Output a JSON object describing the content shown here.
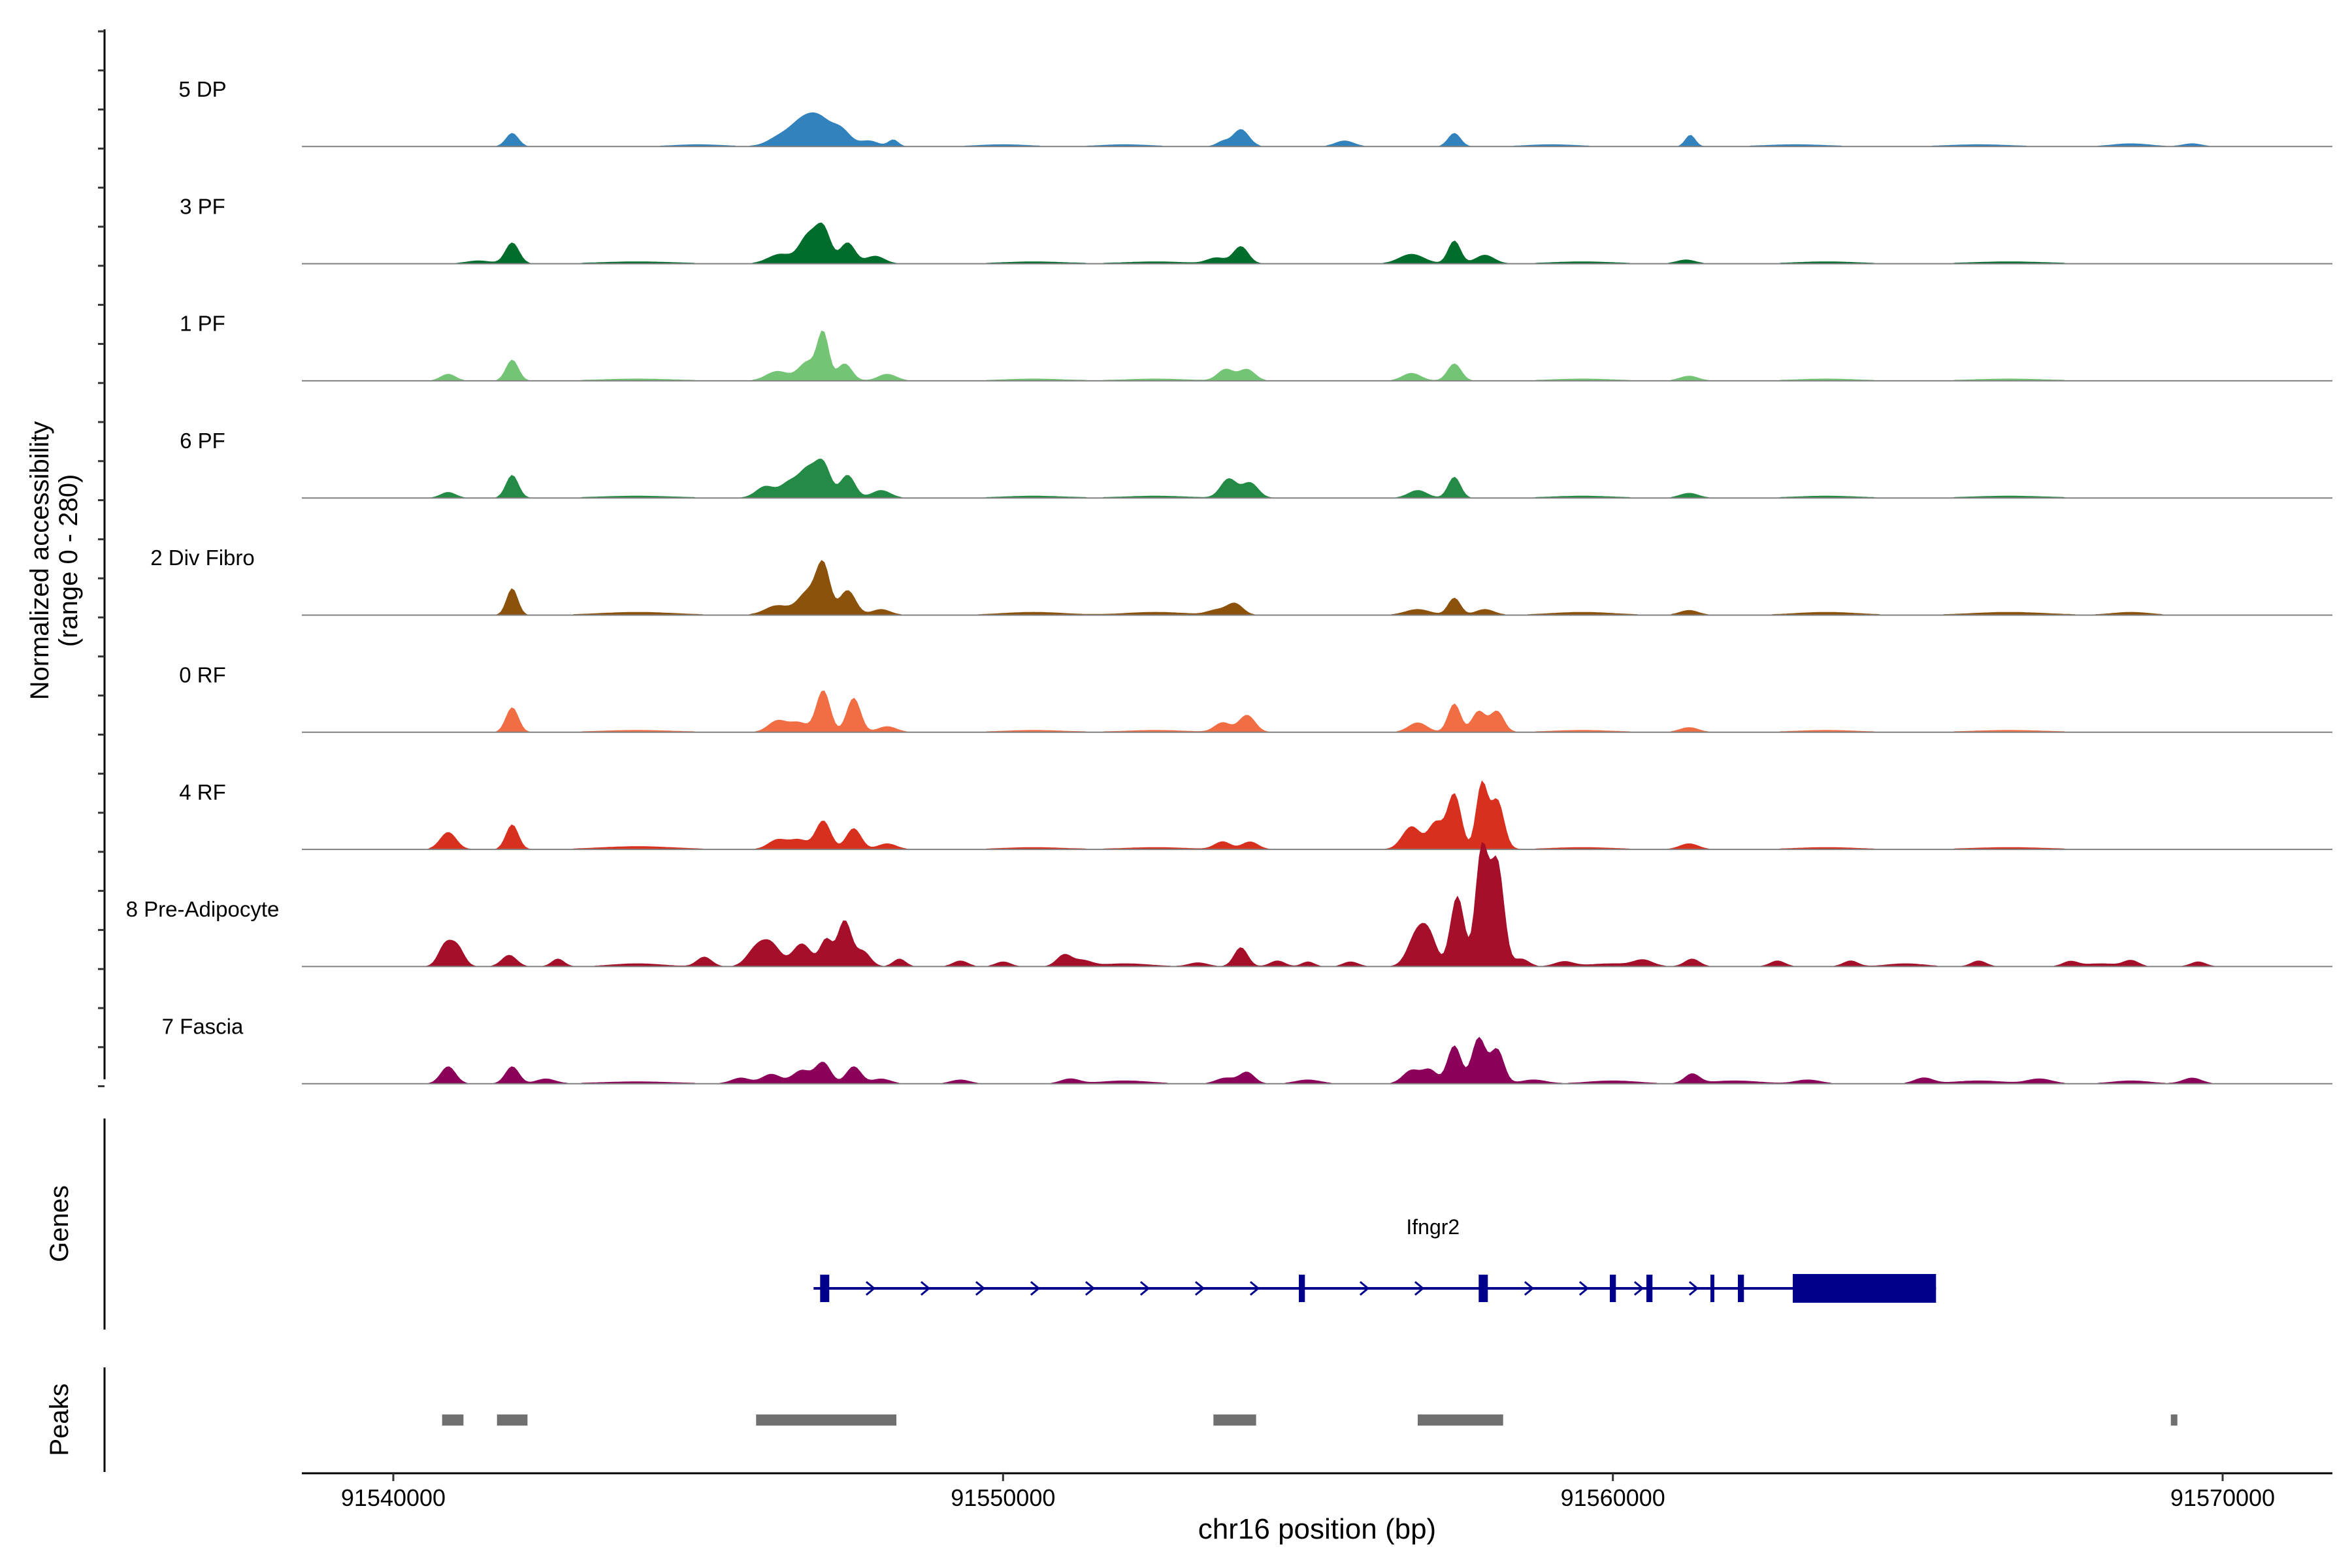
{
  "chart_data": {
    "type": "area",
    "title": "",
    "xlabel": "chr16 position (bp)",
    "ylabel": "Normalized accessibility",
    "ylabel_range": "(range 0 - 280)",
    "ylim": [
      0,
      280
    ],
    "xlim": [
      91538500,
      91571800
    ],
    "x_ticks": [
      91540000,
      91550000,
      91560000,
      91570000
    ],
    "x_tick_labels": [
      "91540000",
      "91550000",
      "91560000",
      "91570000"
    ],
    "gene_panel_label": "Genes",
    "peak_panel_label": "Peaks",
    "tracks": [
      {
        "name": "5 DP",
        "color": "#3182bd",
        "peaks": [
          [
            91541950,
            14,
            100
          ],
          [
            91546350,
            10,
            200
          ],
          [
            91546700,
            22,
            190
          ],
          [
            91547000,
            26,
            190
          ],
          [
            91547350,
            16,
            150
          ],
          [
            91547800,
            6,
            150
          ],
          [
            91548200,
            7,
            80
          ],
          [
            91553900,
            18,
            130
          ],
          [
            91553600,
            5,
            100
          ],
          [
            91555600,
            6,
            150
          ],
          [
            91557400,
            14,
            100
          ],
          [
            91561270,
            12,
            80
          ],
          [
            91545000,
            2,
            400
          ],
          [
            91550000,
            2,
            400
          ],
          [
            91552000,
            2,
            400
          ],
          [
            91559000,
            2,
            400
          ],
          [
            91563000,
            2,
            500
          ],
          [
            91566000,
            2,
            500
          ],
          [
            91568500,
            3,
            300
          ],
          [
            91569500,
            3,
            150
          ]
        ]
      },
      {
        "name": "3 PF",
        "color": "#006d2c",
        "peaks": [
          [
            91541950,
            22,
            110
          ],
          [
            91541400,
            3,
            200
          ],
          [
            91546350,
            10,
            200
          ],
          [
            91546800,
            28,
            140
          ],
          [
            91547050,
            36,
            120
          ],
          [
            91547450,
            22,
            120
          ],
          [
            91547900,
            8,
            150
          ],
          [
            91553900,
            18,
            120
          ],
          [
            91553500,
            6,
            150
          ],
          [
            91556700,
            10,
            200
          ],
          [
            91557400,
            24,
            100
          ],
          [
            91557900,
            9,
            150
          ],
          [
            91544000,
            2,
            600
          ],
          [
            91550500,
            2,
            500
          ],
          [
            91552500,
            2,
            500
          ],
          [
            91559500,
            2,
            500
          ],
          [
            91561200,
            4,
            150
          ],
          [
            91563500,
            2,
            500
          ],
          [
            91566500,
            2,
            600
          ]
        ]
      },
      {
        "name": "1 PF",
        "color": "#74c476",
        "peaks": [
          [
            91541950,
            22,
            100
          ],
          [
            91540900,
            7,
            120
          ],
          [
            91546300,
            10,
            180
          ],
          [
            91546800,
            20,
            150
          ],
          [
            91547050,
            48,
            90
          ],
          [
            91547400,
            18,
            120
          ],
          [
            91548100,
            7,
            150
          ],
          [
            91553650,
            12,
            130
          ],
          [
            91554000,
            12,
            130
          ],
          [
            91556700,
            8,
            150
          ],
          [
            91557400,
            18,
            110
          ],
          [
            91561250,
            5,
            150
          ],
          [
            91544000,
            2,
            600
          ],
          [
            91550500,
            2,
            500
          ],
          [
            91552500,
            2,
            500
          ],
          [
            91559500,
            2,
            500
          ],
          [
            91563500,
            2,
            500
          ],
          [
            91566500,
            2,
            600
          ]
        ]
      },
      {
        "name": "6 PF",
        "color": "#238b45",
        "peaks": [
          [
            91541950,
            24,
            100
          ],
          [
            91540900,
            6,
            120
          ],
          [
            91546100,
            12,
            150
          ],
          [
            91546500,
            16,
            150
          ],
          [
            91546800,
            28,
            140
          ],
          [
            91547050,
            34,
            120
          ],
          [
            91547450,
            24,
            120
          ],
          [
            91548000,
            8,
            150
          ],
          [
            91553700,
            20,
            130
          ],
          [
            91554050,
            16,
            130
          ],
          [
            91556800,
            8,
            150
          ],
          [
            91557400,
            22,
            100
          ],
          [
            91561250,
            5,
            150
          ],
          [
            91544000,
            2,
            600
          ],
          [
            91550500,
            2,
            500
          ],
          [
            91552500,
            2,
            500
          ],
          [
            91559500,
            2,
            500
          ],
          [
            91563500,
            2,
            500
          ],
          [
            91566500,
            2,
            600
          ]
        ]
      },
      {
        "name": "2 Div Fibro",
        "color": "#8c510a",
        "peaks": [
          [
            91541950,
            28,
            90
          ],
          [
            91546300,
            10,
            200
          ],
          [
            91546800,
            24,
            160
          ],
          [
            91547050,
            50,
            110
          ],
          [
            91547450,
            26,
            130
          ],
          [
            91548000,
            6,
            150
          ],
          [
            91553800,
            12,
            130
          ],
          [
            91553500,
            5,
            150
          ],
          [
            91556800,
            6,
            200
          ],
          [
            91557400,
            18,
            100
          ],
          [
            91557900,
            6,
            150
          ],
          [
            91561250,
            5,
            150
          ],
          [
            91544000,
            3,
            600
          ],
          [
            91550500,
            3,
            500
          ],
          [
            91552500,
            3,
            500
          ],
          [
            91559500,
            3,
            500
          ],
          [
            91563500,
            3,
            500
          ],
          [
            91566500,
            3,
            600
          ],
          [
            91568500,
            3,
            300
          ]
        ]
      },
      {
        "name": "0 RF",
        "color": "#f16d43",
        "peaks": [
          [
            91541950,
            26,
            100
          ],
          [
            91546300,
            12,
            150
          ],
          [
            91546650,
            10,
            150
          ],
          [
            91547050,
            44,
            110
          ],
          [
            91547550,
            36,
            110
          ],
          [
            91548100,
            6,
            150
          ],
          [
            91553600,
            10,
            130
          ],
          [
            91554000,
            18,
            130
          ],
          [
            91556800,
            10,
            150
          ],
          [
            91557400,
            30,
            100
          ],
          [
            91557800,
            22,
            110
          ],
          [
            91558100,
            22,
            110
          ],
          [
            91561250,
            5,
            150
          ],
          [
            91544000,
            2,
            600
          ],
          [
            91550500,
            2,
            500
          ],
          [
            91552500,
            2,
            500
          ],
          [
            91559500,
            2,
            500
          ],
          [
            91563500,
            2,
            500
          ],
          [
            91566500,
            2,
            600
          ]
        ]
      },
      {
        "name": "4 RF",
        "color": "#d7301f",
        "peaks": [
          [
            91541950,
            26,
            100
          ],
          [
            91540900,
            18,
            130
          ],
          [
            91546300,
            10,
            150
          ],
          [
            91546650,
            10,
            150
          ],
          [
            91547050,
            30,
            120
          ],
          [
            91547550,
            22,
            120
          ],
          [
            91548100,
            6,
            150
          ],
          [
            91553600,
            8,
            130
          ],
          [
            91554050,
            8,
            130
          ],
          [
            91556700,
            24,
            150
          ],
          [
            91557100,
            28,
            120
          ],
          [
            91557400,
            58,
            110
          ],
          [
            91557850,
            68,
            90
          ],
          [
            91558100,
            52,
            110
          ],
          [
            91561250,
            6,
            150
          ],
          [
            91544000,
            3,
            600
          ],
          [
            91550500,
            2,
            500
          ],
          [
            91552500,
            2,
            500
          ],
          [
            91559500,
            2,
            500
          ],
          [
            91563500,
            2,
            500
          ],
          [
            91566500,
            2,
            600
          ]
        ]
      },
      {
        "name": "8 Pre-Adipocyte",
        "color": "#a50f29",
        "peaks": [
          [
            91540850,
            22,
            110
          ],
          [
            91541050,
            20,
            110
          ],
          [
            91541900,
            12,
            120
          ],
          [
            91542700,
            8,
            100
          ],
          [
            91545100,
            10,
            120
          ],
          [
            91545950,
            18,
            150
          ],
          [
            91546200,
            22,
            150
          ],
          [
            91546700,
            24,
            150
          ],
          [
            91547100,
            28,
            100
          ],
          [
            91547400,
            48,
            110
          ],
          [
            91547700,
            16,
            120
          ],
          [
            91548300,
            8,
            100
          ],
          [
            91549300,
            6,
            120
          ],
          [
            91550000,
            5,
            120
          ],
          [
            91551000,
            12,
            120
          ],
          [
            91551300,
            6,
            150
          ],
          [
            91553200,
            4,
            150
          ],
          [
            91553900,
            20,
            110
          ],
          [
            91554500,
            6,
            120
          ],
          [
            91555000,
            5,
            100
          ],
          [
            91555700,
            5,
            120
          ],
          [
            91556800,
            36,
            150
          ],
          [
            91557000,
            24,
            120
          ],
          [
            91557450,
            74,
            110
          ],
          [
            91557850,
            122,
            100
          ],
          [
            91558100,
            110,
            110
          ],
          [
            91558500,
            8,
            120
          ],
          [
            91559200,
            5,
            150
          ],
          [
            91560500,
            6,
            150
          ],
          [
            91561300,
            8,
            120
          ],
          [
            91562700,
            6,
            120
          ],
          [
            91563900,
            6,
            120
          ],
          [
            91566000,
            6,
            120
          ],
          [
            91567500,
            5,
            120
          ],
          [
            91568500,
            6,
            120
          ],
          [
            91569600,
            5,
            120
          ],
          [
            91544000,
            3,
            400
          ],
          [
            91552000,
            3,
            400
          ],
          [
            91560000,
            3,
            400
          ],
          [
            91564800,
            3,
            300
          ],
          [
            91568000,
            3,
            300
          ]
        ]
      },
      {
        "name": "7 Fascia",
        "color": "#8b0059",
        "peaks": [
          [
            91540900,
            18,
            120
          ],
          [
            91541950,
            18,
            110
          ],
          [
            91542500,
            5,
            150
          ],
          [
            91545700,
            6,
            150
          ],
          [
            91546200,
            10,
            150
          ],
          [
            91546700,
            14,
            150
          ],
          [
            91547050,
            22,
            120
          ],
          [
            91547550,
            18,
            120
          ],
          [
            91548000,
            5,
            150
          ],
          [
            91549300,
            4,
            150
          ],
          [
            91551100,
            5,
            150
          ],
          [
            91553650,
            6,
            150
          ],
          [
            91554000,
            12,
            120
          ],
          [
            91555000,
            4,
            200
          ],
          [
            91556700,
            14,
            140
          ],
          [
            91557000,
            14,
            120
          ],
          [
            91557400,
            40,
            110
          ],
          [
            91557800,
            48,
            110
          ],
          [
            91558100,
            36,
            110
          ],
          [
            91558700,
            4,
            200
          ],
          [
            91561300,
            10,
            120
          ],
          [
            91563200,
            4,
            200
          ],
          [
            91565100,
            6,
            150
          ],
          [
            91567000,
            5,
            200
          ],
          [
            91569500,
            6,
            150
          ],
          [
            91544000,
            2,
            600
          ],
          [
            91552000,
            3,
            400
          ],
          [
            91560000,
            3,
            400
          ],
          [
            91562000,
            3,
            400
          ],
          [
            91566000,
            3,
            400
          ],
          [
            91568500,
            3,
            300
          ]
        ]
      }
    ],
    "genes": [
      {
        "name": "Ifngr2",
        "strand": "+",
        "start": 91547000,
        "end": 91565300,
        "exons": [
          [
            91547000,
            91547150
          ],
          [
            91554850,
            91554950
          ],
          [
            91557800,
            91557950
          ],
          [
            91559950,
            91560050
          ],
          [
            91560550,
            91560650
          ],
          [
            91561600,
            91561650
          ],
          [
            91562050,
            91562150
          ],
          [
            91562950,
            91565300
          ]
        ]
      }
    ],
    "peak_regions": [
      [
        91540800,
        91541150
      ],
      [
        91541700,
        91542200
      ],
      [
        91545950,
        91548250
      ],
      [
        91553450,
        91554150
      ],
      [
        91556800,
        91558200
      ],
      [
        91569150,
        91569250
      ]
    ]
  }
}
